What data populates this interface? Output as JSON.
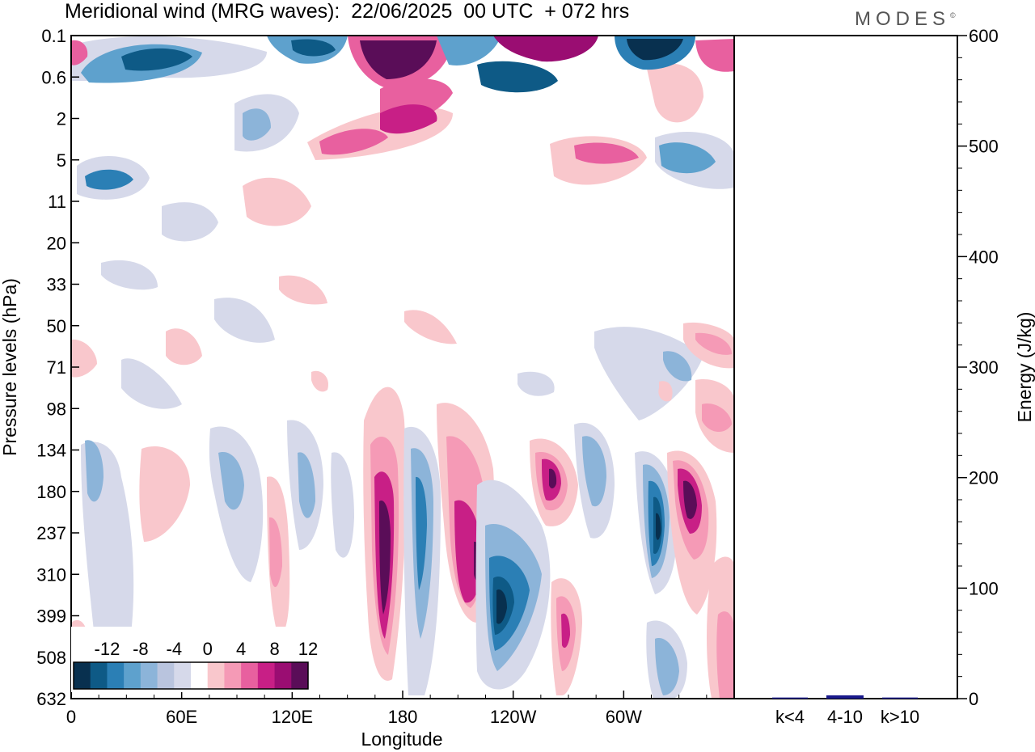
{
  "header": {
    "title": "Meridional wind (MRG waves):  22/06/2025  00 UTC  + 072 hrs",
    "brand": "MODES",
    "brand_mark": "©"
  },
  "chart_data": [
    {
      "type": "heatmap",
      "title": "Meridional wind (MRG waves):  22/06/2025  00 UTC  + 072 hrs",
      "xlabel": "Longitude",
      "ylabel": "Pressure levels (hPa)",
      "x_ticks": [
        "0",
        "60E",
        "120E",
        "180",
        "120W",
        "60W"
      ],
      "x_tick_values": [
        0,
        60,
        120,
        180,
        240,
        300
      ],
      "xlim": [
        0,
        360
      ],
      "y_ticks": [
        "0.1",
        "0.6",
        "2",
        "5",
        "11",
        "20",
        "33",
        "50",
        "71",
        "98",
        "134",
        "180",
        "237",
        "310",
        "399",
        "508",
        "632"
      ],
      "colorbar": {
        "labels": [
          "-12",
          "-8",
          "-4",
          "0",
          "4",
          "8",
          "12"
        ],
        "levels": [
          -14,
          -12,
          -10,
          -8,
          -6,
          -4,
          -2,
          2,
          4,
          6,
          8,
          10,
          12,
          14
        ],
        "colors": [
          "#08304f",
          "#0e5a86",
          "#2b7fb5",
          "#5ea1cd",
          "#8cb4d9",
          "#b9c4de",
          "#d6d9ea",
          "#ffffff",
          "#f9c7cc",
          "#f59ab6",
          "#e8609f",
          "#c81f86",
          "#9a0d72",
          "#5a0d58"
        ]
      },
      "features": [
        {
          "lon": 174,
          "p": 200,
          "value": 14
        },
        {
          "lon": 190,
          "p": 220,
          "value": -10
        },
        {
          "lon": 217,
          "p": 310,
          "value": 12
        },
        {
          "lon": 235,
          "p": 350,
          "value": -14
        },
        {
          "lon": 262,
          "p": 180,
          "value": 12
        },
        {
          "lon": 269,
          "p": 420,
          "value": 12
        },
        {
          "lon": 321,
          "p": 200,
          "value": -12
        },
        {
          "lon": 337,
          "p": 170,
          "value": 14
        },
        {
          "lon": 20,
          "p": 6,
          "value": -10
        },
        {
          "lon": 40,
          "p": 0.3,
          "value": -12
        },
        {
          "lon": 175,
          "p": 0.3,
          "value": 14
        },
        {
          "lon": 282,
          "p": 0.3,
          "value": 14
        },
        {
          "lon": 320,
          "p": 0.3,
          "value": -14
        }
      ]
    },
    {
      "type": "bar",
      "categories": [
        "k<4",
        "4-10",
        "k>10"
      ],
      "values": [
        1,
        3,
        1
      ],
      "ylabel": "Energy (J/kg)",
      "ylim": [
        0,
        600
      ],
      "y_ticks": [
        "0",
        "100",
        "200",
        "300",
        "400",
        "500",
        "600"
      ],
      "y_tick_values": [
        0,
        100,
        200,
        300,
        400,
        500,
        600
      ],
      "bar_color": "#1a1a8c"
    }
  ]
}
